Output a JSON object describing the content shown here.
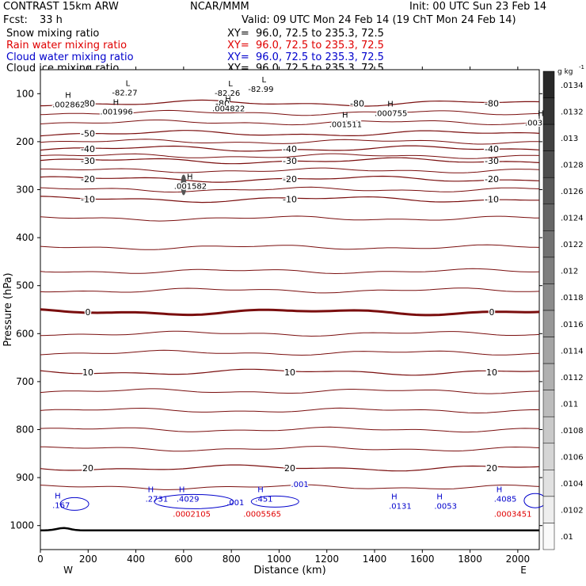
{
  "header": {
    "title": "CONTRAST 15km ARW",
    "center": "NCAR/MMM",
    "init": "Init: 00 UTC Sun 23 Feb 14",
    "fcst_label": "Fcst:",
    "fcst_value": "33 h",
    "valid": "Valid: 09 UTC Mon 24 Feb 14 (19 ChT Mon 24 Feb 14)"
  },
  "fields": [
    {
      "name": "Snow mixing ratio",
      "xy": "XY=  96.0, 72.5 to 235.3, 72.5",
      "color": "#000000"
    },
    {
      "name": "Rain water mixing ratio",
      "xy": "XY=  96.0, 72.5 to 235.3, 72.5",
      "color": "#e00000"
    },
    {
      "name": "Cloud water mixing ratio",
      "xy": "XY=  96.0, 72.5 to 235.3, 72.5",
      "color": "#0000cc"
    },
    {
      "name": "Cloud ice mixing ratio",
      "xy": "XY=  96.0, 72.5 to 235.3, 72.5",
      "color": "#000000"
    }
  ],
  "chart_data": {
    "type": "cross-section contour",
    "xlabel": "Distance (km)",
    "ylabel": "Pressure (hPa)",
    "xlim": [
      0,
      2090
    ],
    "ylim": [
      1050,
      50
    ],
    "x_ticks": [
      0,
      200,
      400,
      600,
      800,
      1000,
      1200,
      1400,
      1600,
      1800,
      2000
    ],
    "y_ticks": [
      100,
      200,
      300,
      400,
      500,
      600,
      700,
      800,
      900,
      1000
    ],
    "x_end_labels": {
      "left": "W",
      "right": "E"
    },
    "colorbar": {
      "unit": "g kg",
      "unit_exp": "-1",
      "ticks": [
        ".0134",
        ".0132",
        ".013",
        ".0128",
        ".0126",
        ".0124",
        ".0122",
        ".012",
        ".0118",
        ".0116",
        ".0114",
        ".0112",
        ".011",
        ".0108",
        ".0106",
        ".0104",
        ".0102",
        ".01"
      ]
    },
    "temperature_isotherms": [
      {
        "value": -80,
        "pressure": 120,
        "labels": [
          "-80",
          "-80",
          "-80",
          "-80"
        ]
      },
      {
        "value": -50,
        "pressure": 183,
        "labels": [
          "-50"
        ]
      },
      {
        "value": -40,
        "pressure": 215,
        "labels": [
          "-40",
          "-40",
          "-40"
        ]
      },
      {
        "value": -30,
        "pressure": 240,
        "labels": [
          "-30",
          "-30",
          "-30"
        ]
      },
      {
        "value": -20,
        "pressure": 278,
        "labels": [
          "-20",
          "-20",
          "-20"
        ]
      },
      {
        "value": -10,
        "pressure": 320,
        "labels": [
          "-10",
          "-10",
          "-10"
        ]
      },
      {
        "value": 0,
        "pressure": 555,
        "labels": [
          "0",
          "0"
        ]
      },
      {
        "value": 10,
        "pressure": 680,
        "labels": [
          "10",
          "10",
          "10"
        ]
      },
      {
        "value": 20,
        "pressure": 880,
        "labels": [
          "20",
          "20",
          "20"
        ]
      }
    ],
    "extremum_labels": [
      {
        "mark": "L",
        "value": "-82.27",
        "x": 300,
        "p": 97
      },
      {
        "mark": "L",
        "value": "-82.26",
        "x": 730,
        "p": 98
      },
      {
        "mark": "L",
        "value": "-82.99",
        "x": 870,
        "p": 90
      },
      {
        "mark": "H",
        "value": ".002862",
        "x": 50,
        "p": 122
      },
      {
        "mark": "H",
        "value": ".001996",
        "x": 250,
        "p": 137
      },
      {
        "mark": "H",
        "value": ".004822",
        "x": 720,
        "p": 130
      },
      {
        "mark": "H",
        "value": ".001511",
        "x": 1210,
        "p": 163
      },
      {
        "mark": "H",
        "value": ".000755",
        "x": 1400,
        "p": 140
      },
      {
        "mark": "H",
        "value": ".003",
        "x": 2030,
        "p": 160
      },
      {
        "mark": "H",
        "value": ".001582",
        "x": 560,
        "p": 292
      }
    ],
    "cloud_water_labels": [
      {
        "mark": "H",
        "value": ".167",
        "x": 50,
        "p": 963
      },
      {
        "mark": "H",
        "value": ".2731",
        "x": 440,
        "p": 950
      },
      {
        "mark": "H",
        "value": ".4029",
        "x": 570,
        "p": 950
      },
      {
        "mark": "",
        "value": ".001",
        "x": 780,
        "p": 958
      },
      {
        "mark": "H",
        "value": ".451",
        "x": 900,
        "p": 950
      },
      {
        "mark": "",
        "value": ".001",
        "x": 1050,
        "p": 920
      },
      {
        "mark": "H",
        "value": ".0131",
        "x": 1460,
        "p": 965
      },
      {
        "mark": "H",
        "value": ".0053",
        "x": 1650,
        "p": 965
      },
      {
        "mark": "H",
        "value": ".4085",
        "x": 1900,
        "p": 950
      }
    ],
    "rain_water_labels": [
      {
        "value": ".0002105",
        "x": 555,
        "p": 965
      },
      {
        "value": ".0005565",
        "x": 850,
        "p": 965
      },
      {
        "value": ".0003451",
        "x": 1900,
        "p": 965
      }
    ]
  }
}
